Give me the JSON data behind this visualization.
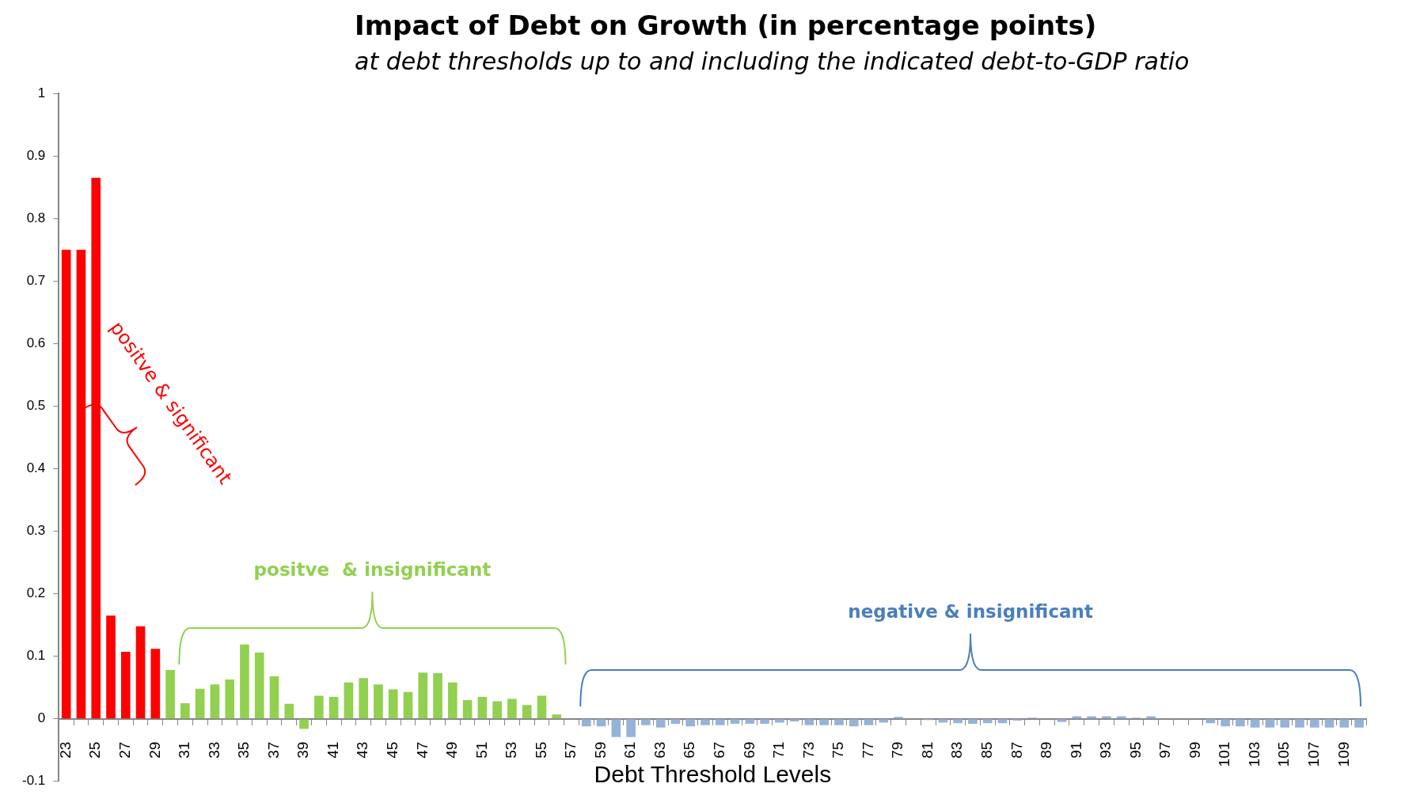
{
  "chart_data": {
    "type": "bar",
    "title": "Impact of Debt on Growth (in percentage points)",
    "subtitle": "at debt thresholds up to and including the indicated debt-to-GDP ratio",
    "xlabel": "Debt Threshold Levels",
    "categories": [
      "23",
      null,
      "25",
      null,
      "27",
      null,
      "29",
      null,
      "31",
      null,
      "33",
      null,
      "35",
      null,
      "37",
      null,
      "39",
      null,
      "41",
      null,
      "43",
      null,
      "45",
      null,
      "47",
      null,
      "49",
      null,
      "51",
      null,
      "53",
      null,
      "55",
      null,
      "57",
      null,
      "59",
      null,
      "61",
      null,
      "63",
      null,
      "65",
      null,
      "67",
      null,
      "69",
      null,
      "71",
      null,
      "73",
      null,
      "75",
      null,
      "77",
      null,
      "79",
      null,
      "81",
      null,
      "83",
      null,
      "85",
      null,
      "87",
      null,
      "89",
      null,
      "91",
      null,
      "93",
      null,
      "95",
      null,
      "97",
      null,
      "99",
      null,
      "101",
      null,
      "103",
      null,
      "105",
      null,
      "107",
      null,
      "109",
      null
    ],
    "values": [
      0.75,
      0.75,
      0.865,
      0.165,
      0.107,
      0.148,
      0.112,
      0.078,
      0.025,
      0.048,
      0.055,
      0.063,
      0.119,
      0.106,
      0.068,
      0.024,
      -0.016,
      0.037,
      0.035,
      0.058,
      0.065,
      0.055,
      0.047,
      0.043,
      0.074,
      0.073,
      0.058,
      0.03,
      0.035,
      0.028,
      0.032,
      0.022,
      0.037,
      0.007,
      null,
      -0.012,
      -0.012,
      -0.029,
      -0.029,
      -0.01,
      -0.014,
      -0.008,
      -0.012,
      -0.01,
      -0.01,
      -0.008,
      -0.008,
      -0.008,
      -0.006,
      -0.004,
      -0.01,
      -0.01,
      -0.01,
      -0.012,
      -0.01,
      -0.006,
      0.003,
      null,
      -0.002,
      -0.006,
      -0.007,
      -0.008,
      -0.007,
      -0.007,
      -0.003,
      0.002,
      null,
      -0.005,
      0.004,
      0.004,
      0.004,
      0.004,
      0.002,
      0.004,
      null,
      null,
      null,
      -0.007,
      -0.012,
      -0.012,
      -0.014,
      -0.014,
      -0.014,
      -0.014,
      -0.014,
      -0.014,
      -0.014,
      -0.014
    ],
    "colors": [
      "#ff0000",
      "#ff0000",
      "#ff0000",
      "#ff0000",
      "#ff0000",
      "#ff0000",
      "#ff0000",
      "#92d050",
      "#92d050",
      "#92d050",
      "#92d050",
      "#92d050",
      "#92d050",
      "#92d050",
      "#92d050",
      "#92d050",
      "#92d050",
      "#92d050",
      "#92d050",
      "#92d050",
      "#92d050",
      "#92d050",
      "#92d050",
      "#92d050",
      "#92d050",
      "#92d050",
      "#92d050",
      "#92d050",
      "#92d050",
      "#92d050",
      "#92d050",
      "#92d050",
      "#92d050",
      "#92d050",
      "#95b3d7",
      "#95b3d7",
      "#95b3d7",
      "#95b3d7",
      "#95b3d7",
      "#95b3d7",
      "#95b3d7",
      "#95b3d7",
      "#95b3d7",
      "#95b3d7",
      "#95b3d7",
      "#95b3d7",
      "#95b3d7",
      "#95b3d7",
      "#95b3d7",
      "#95b3d7",
      "#95b3d7",
      "#95b3d7",
      "#95b3d7",
      "#95b3d7",
      "#95b3d7",
      "#95b3d7",
      "#95b3d7",
      "#95b3d7",
      "#95b3d7",
      "#95b3d7",
      "#95b3d7",
      "#95b3d7",
      "#95b3d7",
      "#95b3d7",
      "#95b3d7",
      "#95b3d7",
      "#95b3d7",
      "#95b3d7",
      "#95b3d7",
      "#95b3d7",
      "#95b3d7",
      "#95b3d7",
      "#95b3d7",
      "#95b3d7",
      "#95b3d7",
      "#95b3d7",
      "#95b3d7",
      "#95b3d7",
      "#95b3d7",
      "#95b3d7",
      "#95b3d7",
      "#95b3d7",
      "#95b3d7",
      "#95b3d7",
      "#95b3d7",
      "#95b3d7",
      "#95b3d7",
      "#95b3d7"
    ],
    "ylim": [
      -0.1,
      1
    ],
    "yticks": [
      -0.1,
      0,
      0.1,
      0.2,
      0.3,
      0.4,
      0.5,
      0.6,
      0.7,
      0.8,
      0.9,
      1
    ],
    "grid": false,
    "legend": false,
    "annotations": [
      "positve & significant",
      "positve  & insignificant",
      "negative & insignificant"
    ]
  }
}
